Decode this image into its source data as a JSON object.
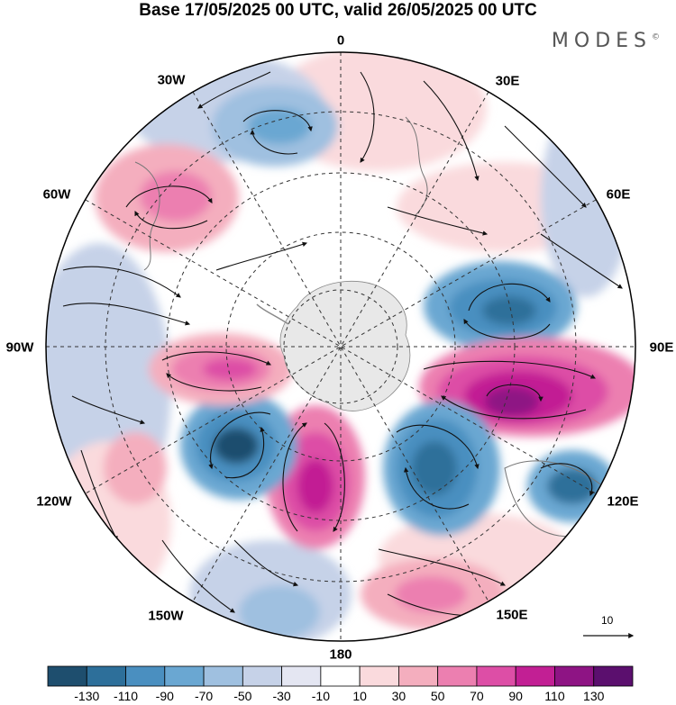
{
  "title": "Base 17/05/2025 00 UTC, valid 26/05/2025 00 UTC",
  "brand": "MODES",
  "brand_mark": "©",
  "longitude_labels": {
    "lon_0": "0",
    "lon_30e": "30E",
    "lon_60e": "60E",
    "lon_90e": "90E",
    "lon_120e": "120E",
    "lon_150e": "150E",
    "lon_180": "180",
    "lon_150w": "150W",
    "lon_120w": "120W",
    "lon_90w": "90W",
    "lon_60w": "60W",
    "lon_30w": "30W"
  },
  "reference_vector": "10",
  "colorbar": {
    "labels": [
      "-130",
      "-110",
      "-90",
      "-70",
      "-50",
      "-30",
      "-10",
      "10",
      "30",
      "50",
      "70",
      "90",
      "110",
      "130"
    ],
    "colors": [
      "#1e4e6e",
      "#2d6f9a",
      "#4a8fc0",
      "#6aa7d2",
      "#9fc0e0",
      "#c6d2e8",
      "#e4e6f2",
      "#ffffff",
      "#fadadd",
      "#f4aebe",
      "#ec7fb0",
      "#dd4ea6",
      "#c21f94",
      "#8e1484",
      "#5b0f6e"
    ]
  },
  "projection": "south polar stereographic",
  "anomaly_centers": [
    {
      "name": "anomaly-neg-east",
      "value": -90
    },
    {
      "name": "anomaly-pos-east",
      "value": 130
    },
    {
      "name": "anomaly-neg-southeast",
      "value": -110
    },
    {
      "name": "anomaly-neg-farright",
      "value": -90
    },
    {
      "name": "anomaly-pos-south",
      "value": 110
    },
    {
      "name": "anomaly-neg-southwest",
      "value": -130
    },
    {
      "name": "anomaly-pos-west",
      "value": 90
    },
    {
      "name": "anomaly-pos-northwest",
      "value": 70
    },
    {
      "name": "anomaly-neg-north",
      "value": -50
    },
    {
      "name": "anomaly-pos-southeast-low",
      "value": 90
    },
    {
      "name": "anomaly-pos-farwest",
      "value": 50
    },
    {
      "name": "anomaly-neg-lower",
      "value": -50
    }
  ]
}
